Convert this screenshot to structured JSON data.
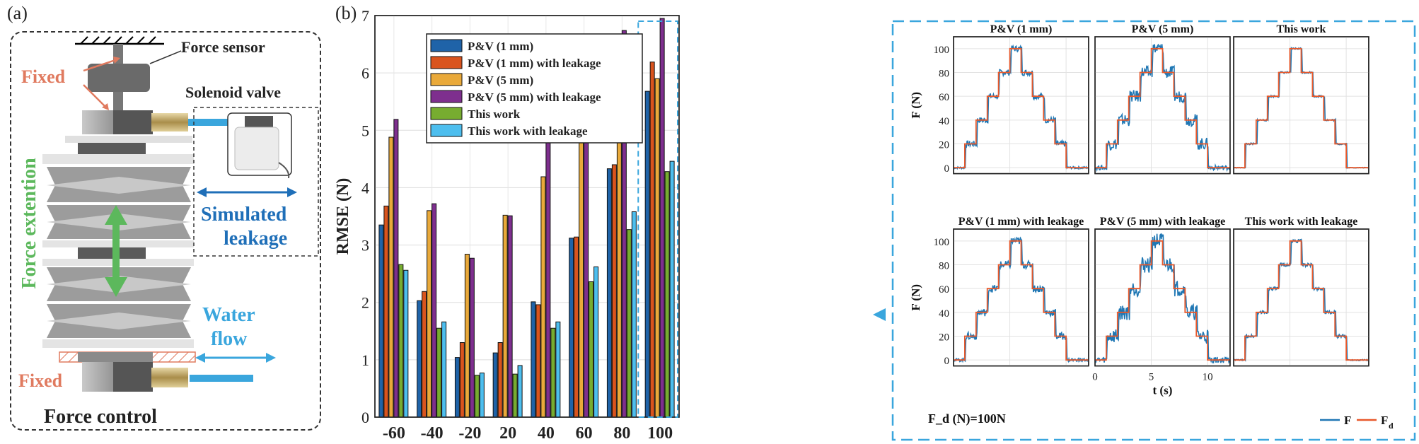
{
  "panel_a": {
    "label": "(a)",
    "texts": {
      "force_sensor": "Force sensor",
      "fixed_top": "Fixed",
      "solenoid_valve": "Solenoid valve",
      "force_extention": "Force extention",
      "simulated": "Simulated",
      "leakage": "leakage",
      "water": "Water",
      "flow": "flow",
      "fixed_bottom": "Fixed",
      "caption": "Force control"
    },
    "colors": {
      "fixed": "#e07a5f",
      "force": "#5cb85c",
      "leak": "#1f6fb8",
      "water": "#3aa6dd"
    }
  },
  "panel_b_label": "(b)",
  "chart_data": [
    {
      "type": "bar",
      "ylabel": "RMSE (N)",
      "ylim": [
        0,
        7
      ],
      "yticks": [
        "0",
        "1",
        "2",
        "3",
        "4",
        "5",
        "6",
        "7"
      ],
      "categories": [
        "-60",
        "-40",
        "-20",
        "20",
        "40",
        "60",
        "80",
        "100"
      ],
      "grid": true,
      "legend_position": "top-left",
      "series": [
        {
          "name": "P&V (1 mm)",
          "color": "#1f63a8",
          "values": [
            3.35,
            2.03,
            1.04,
            1.12,
            2.01,
            3.12,
            4.33,
            5.68
          ]
        },
        {
          "name": "P&V (1 mm) with leakage",
          "color": "#d9541e",
          "values": [
            3.68,
            2.19,
            1.3,
            1.3,
            1.96,
            3.14,
            4.4,
            6.19
          ]
        },
        {
          "name": "P&V (5 mm)",
          "color": "#e9a93a",
          "values": [
            4.88,
            3.6,
            2.84,
            3.52,
            4.19,
            4.91,
            5.39,
            5.9
          ]
        },
        {
          "name": "P&V (5 mm) with leakage",
          "color": "#7e2f8e",
          "values": [
            5.19,
            3.72,
            2.77,
            3.51,
            4.99,
            5.97,
            6.74,
            6.95
          ]
        },
        {
          "name": "This work",
          "color": "#77ac30",
          "values": [
            2.66,
            1.55,
            0.73,
            0.75,
            1.55,
            2.36,
            3.27,
            4.28
          ]
        },
        {
          "name": "This work with leakage",
          "color": "#4dbeee",
          "values": [
            2.56,
            1.66,
            0.77,
            0.9,
            1.66,
            2.62,
            3.58,
            4.46
          ]
        }
      ]
    },
    {
      "type": "line",
      "ylabel": "F (N)",
      "xlabel": "t (s)",
      "ylim": [
        -5,
        110
      ],
      "yticks": [
        "0",
        "20",
        "40",
        "60",
        "80",
        "100"
      ],
      "xticks": [
        "0",
        "5",
        "10"
      ],
      "xlim": [
        0,
        12
      ],
      "annotation": "F_d (N)=100N",
      "legend": {
        "actual": "F",
        "desired": "F",
        "desired_sub": "d"
      },
      "colors": {
        "actual": "#1f77b4",
        "desired": "#e8582a"
      },
      "reference": {
        "t": [
          0,
          1,
          1,
          2,
          2,
          3,
          3,
          4,
          4,
          5,
          5,
          6,
          6,
          7,
          7,
          8,
          8,
          9,
          9,
          10,
          10,
          11,
          11,
          12
        ],
        "f": [
          0,
          0,
          20,
          20,
          40,
          40,
          60,
          60,
          80,
          80,
          100,
          100,
          80,
          80,
          60,
          60,
          40,
          40,
          20,
          20,
          0,
          0,
          0,
          0
        ]
      },
      "panels": [
        {
          "title": "P&V (1 mm)",
          "noise": 1.6
        },
        {
          "title": "P&V (5 mm)",
          "noise": 3.2
        },
        {
          "title": "This work",
          "noise": 0.5
        },
        {
          "title": "P&V (1 mm) with leakage",
          "noise": 2.0
        },
        {
          "title": "P&V (5 mm) with leakage",
          "noise": 4.2
        },
        {
          "title": "This work with leakage",
          "noise": 0.9
        }
      ]
    }
  ]
}
